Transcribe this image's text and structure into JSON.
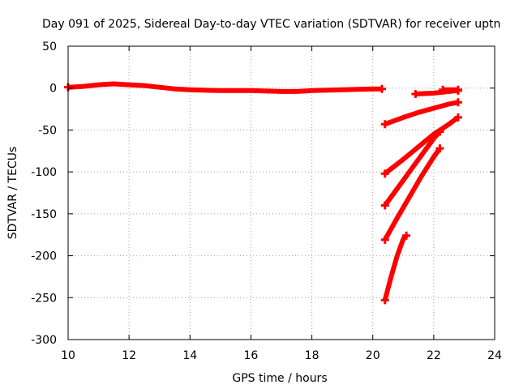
{
  "chart_data": {
    "type": "line",
    "title": "Day 091 of 2025, Sidereal Day-to-day VTEC variation (SDTVAR) for receiver uptn",
    "xlabel": "GPS time / hours",
    "ylabel": "SDTVAR / TECUs",
    "xlim": [
      10,
      24
    ],
    "ylim": [
      -300,
      50
    ],
    "xticks": [
      10,
      12,
      14,
      16,
      18,
      20,
      22,
      24
    ],
    "yticks": [
      50,
      0,
      -50,
      -100,
      -150,
      -200,
      -250,
      -300
    ],
    "grid": true,
    "series_color": "#ff0000",
    "series": [
      {
        "name": "track-main",
        "points": [
          [
            10.0,
            1
          ],
          [
            10.5,
            2
          ],
          [
            11.0,
            4
          ],
          [
            11.5,
            5
          ],
          [
            12.0,
            4
          ],
          [
            12.5,
            3
          ],
          [
            13.0,
            1
          ],
          [
            13.5,
            -1
          ],
          [
            14.0,
            -2
          ],
          [
            15.0,
            -3
          ],
          [
            16.0,
            -3
          ],
          [
            17.0,
            -4
          ],
          [
            17.5,
            -4
          ],
          [
            18.0,
            -3
          ],
          [
            19.0,
            -2
          ],
          [
            20.0,
            -1
          ],
          [
            20.3,
            -1
          ]
        ]
      },
      {
        "name": "track-late-flat",
        "points": [
          [
            21.4,
            -7
          ],
          [
            22.0,
            -6
          ],
          [
            22.5,
            -4
          ],
          [
            22.8,
            -3
          ]
        ]
      },
      {
        "name": "track-late-flat-2",
        "points": [
          [
            22.3,
            -2
          ],
          [
            22.8,
            -2
          ]
        ]
      },
      {
        "name": "track-rise-1",
        "points": [
          [
            20.4,
            -43
          ],
          [
            21.0,
            -35
          ],
          [
            21.5,
            -29
          ],
          [
            22.0,
            -24
          ],
          [
            22.5,
            -19
          ],
          [
            22.8,
            -17
          ]
        ]
      },
      {
        "name": "track-rise-2",
        "points": [
          [
            20.4,
            -102
          ],
          [
            21.0,
            -85
          ],
          [
            21.5,
            -70
          ],
          [
            22.0,
            -55
          ],
          [
            22.5,
            -43
          ],
          [
            22.8,
            -35
          ]
        ]
      },
      {
        "name": "track-rise-3",
        "points": [
          [
            20.4,
            -140
          ],
          [
            20.8,
            -120
          ],
          [
            21.2,
            -100
          ],
          [
            21.6,
            -80
          ],
          [
            22.0,
            -60
          ],
          [
            22.2,
            -52
          ]
        ]
      },
      {
        "name": "track-rise-4",
        "points": [
          [
            20.4,
            -181
          ],
          [
            20.8,
            -155
          ],
          [
            21.2,
            -130
          ],
          [
            21.6,
            -105
          ],
          [
            22.0,
            -82
          ],
          [
            22.2,
            -72
          ]
        ]
      },
      {
        "name": "track-rise-5",
        "points": [
          [
            20.4,
            -253
          ],
          [
            20.6,
            -225
          ],
          [
            20.8,
            -200
          ],
          [
            21.0,
            -180
          ],
          [
            21.1,
            -176
          ]
        ]
      }
    ]
  }
}
